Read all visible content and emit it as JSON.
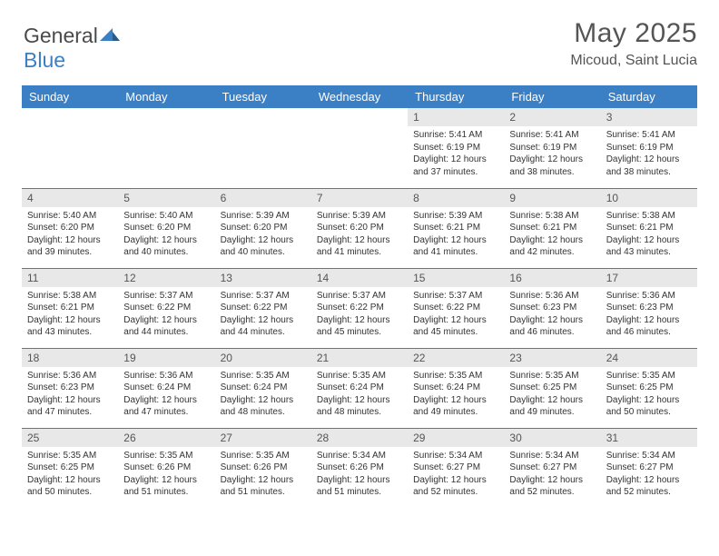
{
  "logo": {
    "word1": "General",
    "word2": "Blue"
  },
  "title": "May 2025",
  "location": "Micoud, Saint Lucia",
  "colors": {
    "header_bg": "#3b7fc4",
    "header_text": "#ffffff",
    "daynum_bg": "#e8e8e8",
    "text": "#333333",
    "title_text": "#555555",
    "row_border": "#3b7fc4"
  },
  "weekdays": [
    "Sunday",
    "Monday",
    "Tuesday",
    "Wednesday",
    "Thursday",
    "Friday",
    "Saturday"
  ],
  "weeks": [
    [
      null,
      null,
      null,
      null,
      {
        "n": "1",
        "sunrise": "5:41 AM",
        "sunset": "6:19 PM",
        "day_h": "12",
        "day_m": "37"
      },
      {
        "n": "2",
        "sunrise": "5:41 AM",
        "sunset": "6:19 PM",
        "day_h": "12",
        "day_m": "38"
      },
      {
        "n": "3",
        "sunrise": "5:41 AM",
        "sunset": "6:19 PM",
        "day_h": "12",
        "day_m": "38"
      }
    ],
    [
      {
        "n": "4",
        "sunrise": "5:40 AM",
        "sunset": "6:20 PM",
        "day_h": "12",
        "day_m": "39"
      },
      {
        "n": "5",
        "sunrise": "5:40 AM",
        "sunset": "6:20 PM",
        "day_h": "12",
        "day_m": "40"
      },
      {
        "n": "6",
        "sunrise": "5:39 AM",
        "sunset": "6:20 PM",
        "day_h": "12",
        "day_m": "40"
      },
      {
        "n": "7",
        "sunrise": "5:39 AM",
        "sunset": "6:20 PM",
        "day_h": "12",
        "day_m": "41"
      },
      {
        "n": "8",
        "sunrise": "5:39 AM",
        "sunset": "6:21 PM",
        "day_h": "12",
        "day_m": "41"
      },
      {
        "n": "9",
        "sunrise": "5:38 AM",
        "sunset": "6:21 PM",
        "day_h": "12",
        "day_m": "42"
      },
      {
        "n": "10",
        "sunrise": "5:38 AM",
        "sunset": "6:21 PM",
        "day_h": "12",
        "day_m": "43"
      }
    ],
    [
      {
        "n": "11",
        "sunrise": "5:38 AM",
        "sunset": "6:21 PM",
        "day_h": "12",
        "day_m": "43"
      },
      {
        "n": "12",
        "sunrise": "5:37 AM",
        "sunset": "6:22 PM",
        "day_h": "12",
        "day_m": "44"
      },
      {
        "n": "13",
        "sunrise": "5:37 AM",
        "sunset": "6:22 PM",
        "day_h": "12",
        "day_m": "44"
      },
      {
        "n": "14",
        "sunrise": "5:37 AM",
        "sunset": "6:22 PM",
        "day_h": "12",
        "day_m": "45"
      },
      {
        "n": "15",
        "sunrise": "5:37 AM",
        "sunset": "6:22 PM",
        "day_h": "12",
        "day_m": "45"
      },
      {
        "n": "16",
        "sunrise": "5:36 AM",
        "sunset": "6:23 PM",
        "day_h": "12",
        "day_m": "46"
      },
      {
        "n": "17",
        "sunrise": "5:36 AM",
        "sunset": "6:23 PM",
        "day_h": "12",
        "day_m": "46"
      }
    ],
    [
      {
        "n": "18",
        "sunrise": "5:36 AM",
        "sunset": "6:23 PM",
        "day_h": "12",
        "day_m": "47"
      },
      {
        "n": "19",
        "sunrise": "5:36 AM",
        "sunset": "6:24 PM",
        "day_h": "12",
        "day_m": "47"
      },
      {
        "n": "20",
        "sunrise": "5:35 AM",
        "sunset": "6:24 PM",
        "day_h": "12",
        "day_m": "48"
      },
      {
        "n": "21",
        "sunrise": "5:35 AM",
        "sunset": "6:24 PM",
        "day_h": "12",
        "day_m": "48"
      },
      {
        "n": "22",
        "sunrise": "5:35 AM",
        "sunset": "6:24 PM",
        "day_h": "12",
        "day_m": "49"
      },
      {
        "n": "23",
        "sunrise": "5:35 AM",
        "sunset": "6:25 PM",
        "day_h": "12",
        "day_m": "49"
      },
      {
        "n": "24",
        "sunrise": "5:35 AM",
        "sunset": "6:25 PM",
        "day_h": "12",
        "day_m": "50"
      }
    ],
    [
      {
        "n": "25",
        "sunrise": "5:35 AM",
        "sunset": "6:25 PM",
        "day_h": "12",
        "day_m": "50"
      },
      {
        "n": "26",
        "sunrise": "5:35 AM",
        "sunset": "6:26 PM",
        "day_h": "12",
        "day_m": "51"
      },
      {
        "n": "27",
        "sunrise": "5:35 AM",
        "sunset": "6:26 PM",
        "day_h": "12",
        "day_m": "51"
      },
      {
        "n": "28",
        "sunrise": "5:34 AM",
        "sunset": "6:26 PM",
        "day_h": "12",
        "day_m": "51"
      },
      {
        "n": "29",
        "sunrise": "5:34 AM",
        "sunset": "6:27 PM",
        "day_h": "12",
        "day_m": "52"
      },
      {
        "n": "30",
        "sunrise": "5:34 AM",
        "sunset": "6:27 PM",
        "day_h": "12",
        "day_m": "52"
      },
      {
        "n": "31",
        "sunrise": "5:34 AM",
        "sunset": "6:27 PM",
        "day_h": "12",
        "day_m": "52"
      }
    ]
  ],
  "labels": {
    "sunrise": "Sunrise:",
    "sunset": "Sunset:",
    "daylight": "Daylight:",
    "hours": "hours",
    "and": "and",
    "minutes": "minutes."
  }
}
